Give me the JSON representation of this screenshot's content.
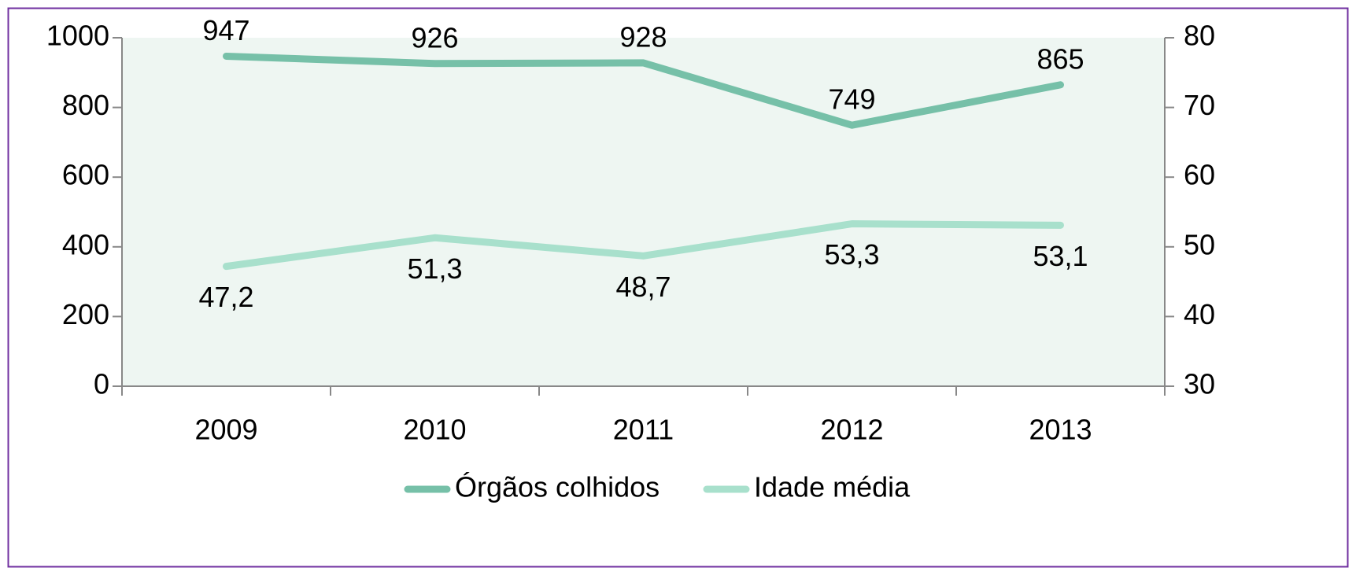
{
  "chart_data": {
    "type": "line",
    "categories": [
      "2009",
      "2010",
      "2011",
      "2012",
      "2013"
    ],
    "series": [
      {
        "name": "Órgãos colhidos",
        "color": "#76c0a8",
        "values": [
          947,
          926,
          928,
          749,
          865
        ]
      },
      {
        "name": "Idade média",
        "color": "#a8e0cc",
        "axis": "y2",
        "values": [
          47.2,
          51.3,
          48.7,
          53.3,
          53.1
        ],
        "value_labels": [
          "47,2",
          "51,3",
          "48,7",
          "53,3",
          "53,1"
        ]
      }
    ],
    "ylim": [
      0,
      1000
    ],
    "yticks": [
      0,
      200,
      400,
      600,
      800,
      1000
    ],
    "y2lim": [
      30,
      80
    ],
    "y2ticks": [
      30,
      40,
      50,
      60,
      70,
      80
    ],
    "legend": "bottom"
  }
}
